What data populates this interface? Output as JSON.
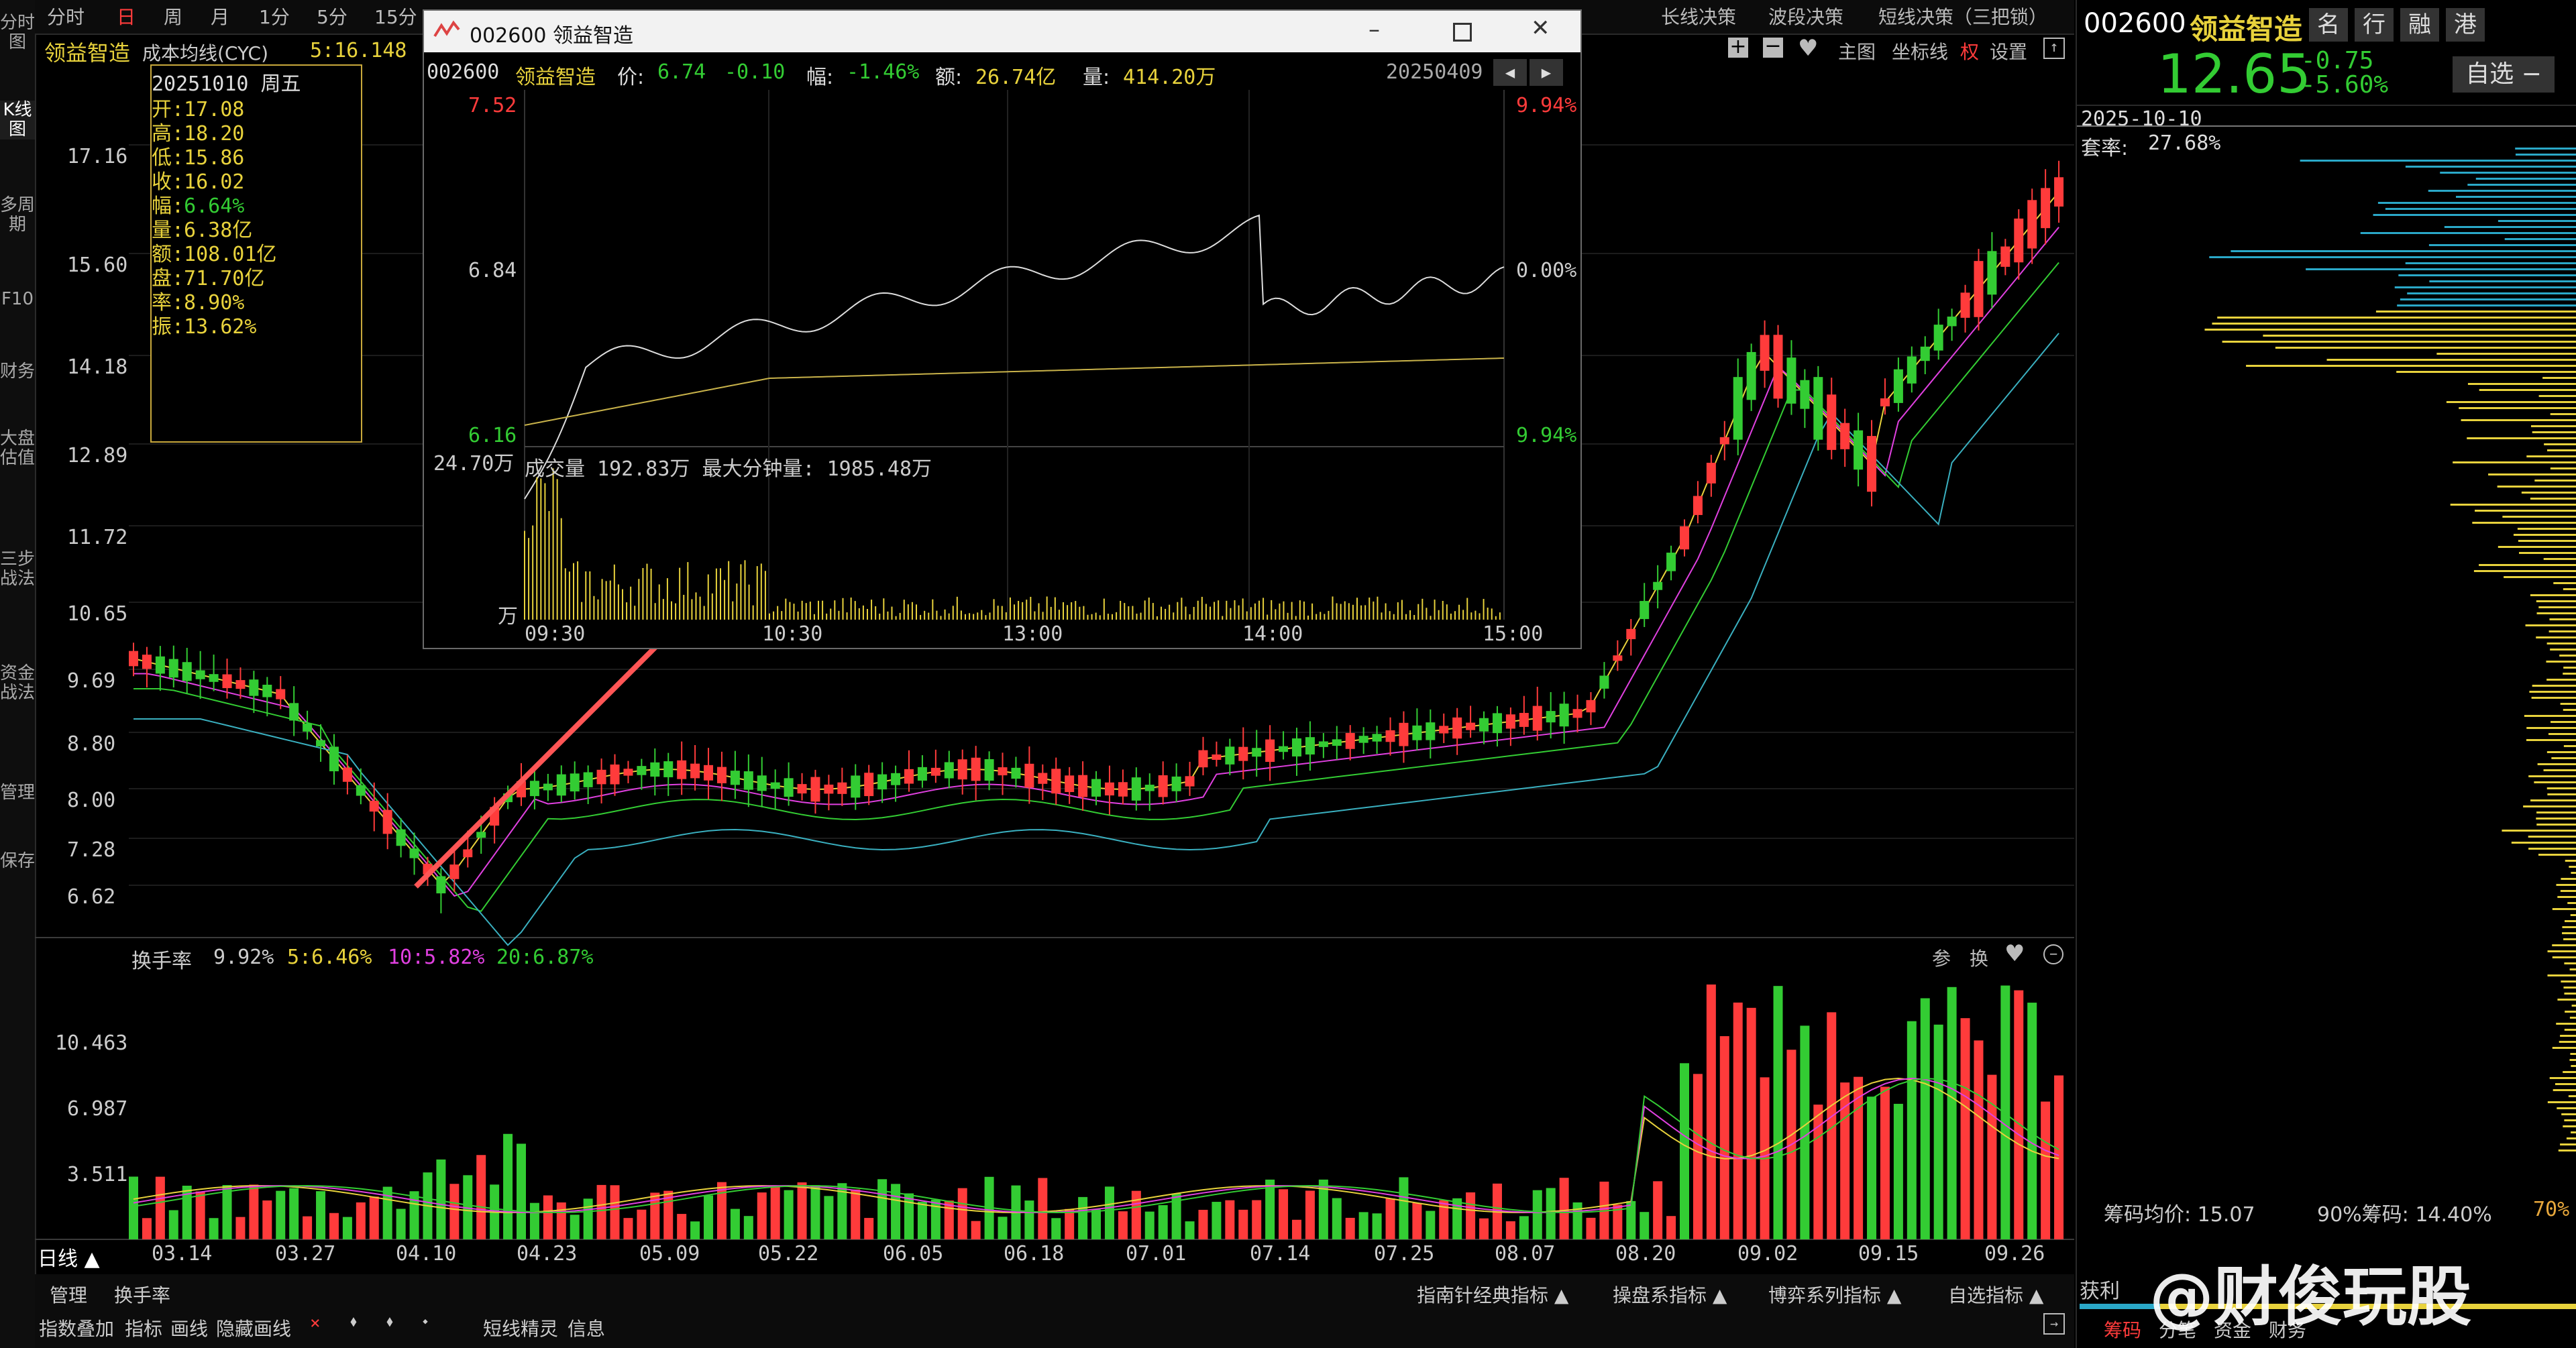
{
  "left_tabs": [
    "分时图",
    "K线图",
    "多周期",
    "F10",
    "财务",
    "大盘估值",
    "三步战法",
    "资金战法",
    "管理",
    "保存"
  ],
  "period_tabs": [
    "分时",
    "日",
    "周",
    "月",
    "1分",
    "5分",
    "15分"
  ],
  "top_right_tabs": [
    "长线决策",
    "波段决策",
    "短线决策（三把锁）"
  ],
  "toolbar": {
    "main_label": "主图",
    "coord_label": "坐标线",
    "quan_label": "权",
    "settings_label": "设置"
  },
  "stock": {
    "code": "002600",
    "name": "领益智造",
    "price": "12.65",
    "change": "-0.75",
    "change_pct": "-5.60%",
    "watch_label": "自选",
    "badges": [
      "名",
      "行",
      "融",
      "港"
    ]
  },
  "main_chart": {
    "indicator_name": "成本均线(CYC)",
    "indicator_value": "5:16.148",
    "y_labels": [
      "17.16",
      "15.60",
      "14.18",
      "12.89",
      "11.72",
      "10.65",
      "9.69",
      "8.80",
      "8.00",
      "7.28",
      "6.62"
    ],
    "x_labels": [
      "03.14",
      "03.27",
      "04.10",
      "04.23",
      "05.09",
      "05.22",
      "06.05",
      "06.18",
      "07.01",
      "07.14",
      "07.25",
      "08.07",
      "08.20",
      "09.02",
      "09.15",
      "09.26"
    ]
  },
  "info_box": {
    "date": "20251010 周五",
    "open": "开:17.08",
    "high": "高:18.20",
    "low": "低:15.86",
    "close": "收:16.02",
    "range": "幅:",
    "range_val": "6.64%",
    "vol": "量:6.38亿",
    "amount": "额:108.01亿",
    "float": "盘:71.70亿",
    "turnover": "率:8.90%",
    "amp": "振:13.62%"
  },
  "sub_chart": {
    "title": "换手率",
    "turnover": "9.92%",
    "ma5": "5:6.46%",
    "ma10": "10:5.82%",
    "ma20": "20:6.87%",
    "y_labels": [
      "10.463",
      "6.987",
      "3.511"
    ],
    "icons_text": [
      "参",
      "换"
    ]
  },
  "popup": {
    "window_title": "002600 领益智造",
    "info": {
      "code": "002600",
      "name": "领益智造",
      "price_label": "价:",
      "price": "6.74",
      "change": "-0.10",
      "pct_label": "幅:",
      "pct": "-1.46%",
      "amount_label": "额:",
      "amount": "26.74亿",
      "vol_label": "量:",
      "vol": "414.20万",
      "date": "20250409"
    },
    "y_left": [
      "7.52",
      "6.84",
      "6.16"
    ],
    "y_right": [
      "9.94%",
      "0.00%",
      "9.94%"
    ],
    "vol_max": "24.70万",
    "vol_unit": "万",
    "vol_info": "成交量 192.83万  最大分钟量: 1985.48万",
    "x_labels": [
      "09:30",
      "10:30",
      "13:00",
      "14:00",
      "15:00"
    ]
  },
  "right_panel": {
    "date": "2025-10-10",
    "trap_label": "套率:",
    "trap": "27.68%",
    "avg_cost": "筹码均价: 15.07",
    "cost90": "90%筹码: 14.40%",
    "pct70": "70%",
    "bottom_tabs": [
      "筹码",
      "分笔",
      "资金",
      "财务"
    ],
    "profit_label": "获利"
  },
  "bottom": {
    "day_label": "日线",
    "manage_label": "管理",
    "turnover_label": "换手率",
    "indicator_tabs": [
      "指南针经典指标",
      "操盘系指标",
      "博弈系列指标",
      "自选指标"
    ],
    "overlay_items": [
      "指数叠加",
      "指标",
      "画线",
      "隐藏画线"
    ],
    "elf_label": "短线精灵",
    "info_label": "信息"
  },
  "watermark": "@财俊玩股",
  "colors": {
    "up": "#ff3b3b",
    "down": "#33cc33",
    "bg": "#000000",
    "yellow": "#e8d23c",
    "magenta": "#e040e0",
    "cyan": "#3ab0c0"
  }
}
